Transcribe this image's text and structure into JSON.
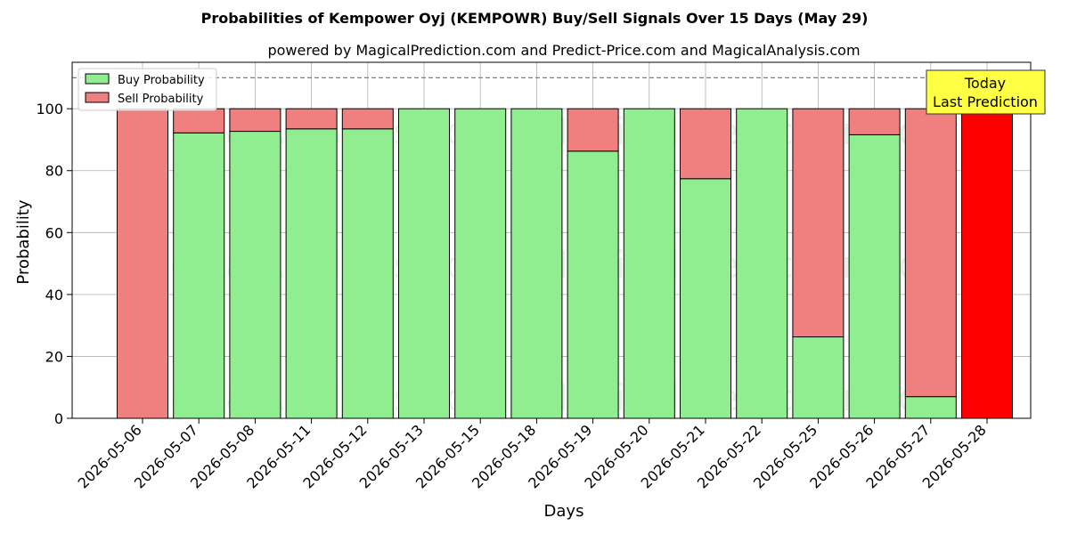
{
  "chart_data": {
    "type": "bar",
    "stacked": true,
    "title": "Probabilities of Kempower Oyj (KEMPOWR) Buy/Sell Signals Over 15 Days (May 29)",
    "subtitle": "powered by MagicalPrediction.com and Predict-Price.com and MagicalAnalysis.com",
    "xlabel": "Days",
    "ylabel": "Probability",
    "ylim": [
      0,
      115
    ],
    "yticks": [
      0,
      20,
      40,
      60,
      80,
      100
    ],
    "reference_line": 110,
    "grid": true,
    "legend_position": "top-left",
    "categories": [
      "2026-05-06",
      "2026-05-07",
      "2026-05-08",
      "2026-05-11",
      "2026-05-12",
      "2026-05-13",
      "2026-05-15",
      "2026-05-18",
      "2026-05-19",
      "2026-05-20",
      "2026-05-21",
      "2026-05-22",
      "2026-05-25",
      "2026-05-26",
      "2026-05-27",
      "2026-05-28"
    ],
    "series": [
      {
        "name": "Buy Probability",
        "color": "#90ee90",
        "values": [
          0,
          92.2,
          92.7,
          93.5,
          93.5,
          100,
          100,
          100,
          86.3,
          100,
          77.4,
          100,
          26.3,
          91.6,
          7.0,
          0
        ]
      },
      {
        "name": "Sell Probability",
        "color": "#f08080",
        "values": [
          100,
          7.8,
          7.3,
          6.5,
          6.5,
          0,
          0,
          0,
          13.7,
          0,
          22.6,
          0,
          73.7,
          8.4,
          93.0,
          100
        ]
      }
    ],
    "highlight": {
      "category": "2026-05-28",
      "color": "#ff0000"
    },
    "annotation": {
      "line1": "Today",
      "line2": "Last Prediction",
      "box_color": "#ffff44"
    },
    "watermarks": [
      "MagicalAnalysis.com",
      "MagicalPrediction.com",
      "MagicalAnalysis.com",
      "MagicalPrediction.com",
      "MagicalAnalysis.com",
      "MagicalPrediction.com"
    ]
  }
}
